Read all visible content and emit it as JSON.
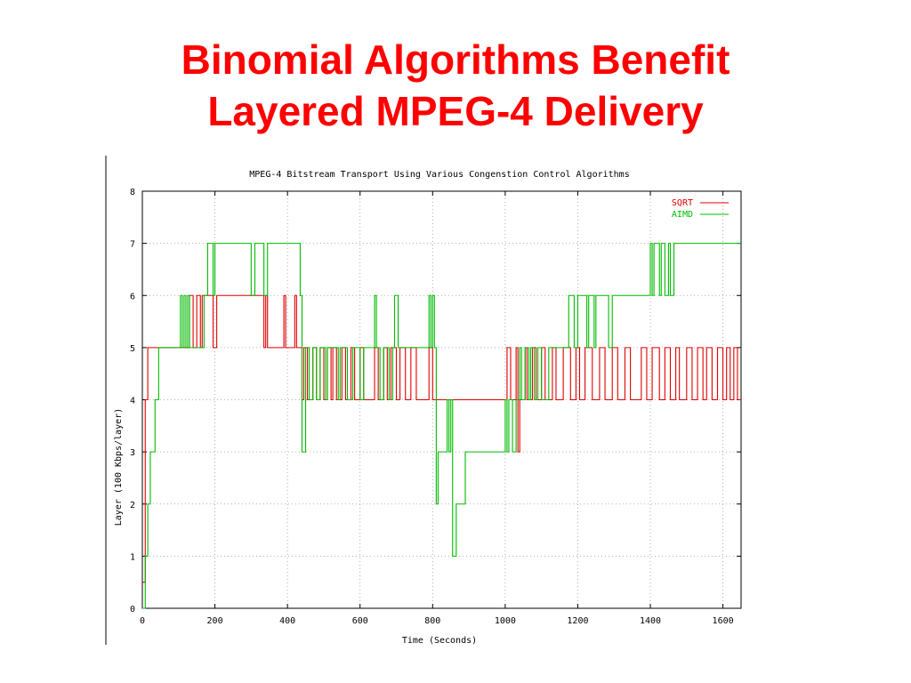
{
  "slide": {
    "title_line1": "Binomial Algorithms Benefit",
    "title_line2": "Layered MPEG-4 Delivery"
  },
  "chart_data": {
    "type": "line",
    "title": "MPEG-4 Bitstream Transport Using Various Congenstion Control Algorithms",
    "xlabel": "Time (Seconds)",
    "ylabel": "Layer (100 Kbps/layer)",
    "xlim": [
      0,
      1650
    ],
    "ylim": [
      0,
      8
    ],
    "xticks": [
      0,
      200,
      400,
      600,
      800,
      1000,
      1200,
      1400,
      1600
    ],
    "yticks": [
      0,
      1,
      2,
      3,
      4,
      5,
      6,
      7,
      8
    ],
    "grid": true,
    "legend": "top-right",
    "series": [
      {
        "name": "SQRT",
        "color": "#e00000",
        "step": [
          [
            0,
            0.5
          ],
          [
            8,
            4
          ],
          [
            15,
            5
          ],
          [
            130,
            6
          ],
          [
            140,
            5
          ],
          [
            150,
            6
          ],
          [
            160,
            5
          ],
          [
            165,
            6
          ],
          [
            190,
            6
          ],
          [
            195,
            5
          ],
          [
            205,
            6
          ],
          [
            310,
            6
          ],
          [
            335,
            5
          ],
          [
            340,
            6
          ],
          [
            345,
            5
          ],
          [
            390,
            6
          ],
          [
            395,
            5
          ],
          [
            420,
            6
          ],
          [
            425,
            5
          ],
          [
            440,
            4
          ],
          [
            445,
            5
          ],
          [
            455,
            4
          ],
          [
            470,
            5
          ],
          [
            480,
            4
          ],
          [
            490,
            5
          ],
          [
            500,
            4
          ],
          [
            510,
            5
          ],
          [
            520,
            4
          ],
          [
            525,
            5
          ],
          [
            535,
            4
          ],
          [
            550,
            5
          ],
          [
            560,
            4
          ],
          [
            575,
            5
          ],
          [
            585,
            4
          ],
          [
            600,
            5
          ],
          [
            610,
            4
          ],
          [
            640,
            5
          ],
          [
            650,
            4
          ],
          [
            665,
            5
          ],
          [
            675,
            4
          ],
          [
            685,
            5
          ],
          [
            700,
            4
          ],
          [
            710,
            5
          ],
          [
            725,
            4
          ],
          [
            740,
            5
          ],
          [
            755,
            4
          ],
          [
            790,
            5
          ],
          [
            800,
            4
          ],
          [
            855,
            4
          ],
          [
            875,
            4
          ],
          [
            1000,
            4
          ],
          [
            1005,
            5
          ],
          [
            1015,
            4
          ],
          [
            1030,
            5
          ],
          [
            1035,
            3
          ],
          [
            1040,
            4
          ],
          [
            1055,
            5
          ],
          [
            1060,
            4
          ],
          [
            1075,
            5
          ],
          [
            1085,
            4
          ],
          [
            1100,
            5
          ],
          [
            1110,
            4
          ],
          [
            1130,
            5
          ],
          [
            1140,
            4
          ],
          [
            1160,
            5
          ],
          [
            1180,
            4
          ],
          [
            1195,
            5
          ],
          [
            1205,
            4
          ],
          [
            1220,
            5
          ],
          [
            1240,
            4
          ],
          [
            1260,
            5
          ],
          [
            1275,
            4
          ],
          [
            1295,
            5
          ],
          [
            1310,
            4
          ],
          [
            1330,
            5
          ],
          [
            1345,
            4
          ],
          [
            1375,
            5
          ],
          [
            1390,
            4
          ],
          [
            1405,
            5
          ],
          [
            1425,
            4
          ],
          [
            1440,
            5
          ],
          [
            1455,
            4
          ],
          [
            1470,
            5
          ],
          [
            1480,
            4
          ],
          [
            1500,
            5
          ],
          [
            1515,
            4
          ],
          [
            1530,
            5
          ],
          [
            1545,
            4
          ],
          [
            1555,
            5
          ],
          [
            1570,
            4
          ],
          [
            1585,
            5
          ],
          [
            1600,
            4
          ],
          [
            1610,
            5
          ],
          [
            1620,
            4
          ],
          [
            1630,
            5
          ],
          [
            1640,
            4
          ],
          [
            1650,
            4
          ]
        ]
      },
      {
        "name": "AIMD",
        "color": "#00bb00",
        "step": [
          [
            0,
            0
          ],
          [
            8,
            1
          ],
          [
            15,
            2
          ],
          [
            22,
            3
          ],
          [
            35,
            4
          ],
          [
            45,
            5
          ],
          [
            105,
            6
          ],
          [
            110,
            5
          ],
          [
            115,
            6
          ],
          [
            120,
            5
          ],
          [
            125,
            6
          ],
          [
            130,
            5
          ],
          [
            170,
            6
          ],
          [
            180,
            7
          ],
          [
            195,
            6
          ],
          [
            200,
            7
          ],
          [
            300,
            6
          ],
          [
            310,
            7
          ],
          [
            335,
            6
          ],
          [
            345,
            7
          ],
          [
            435,
            6
          ],
          [
            440,
            3
          ],
          [
            450,
            5
          ],
          [
            460,
            4
          ],
          [
            470,
            5
          ],
          [
            480,
            4
          ],
          [
            490,
            5
          ],
          [
            505,
            4
          ],
          [
            510,
            5
          ],
          [
            540,
            4
          ],
          [
            545,
            5
          ],
          [
            565,
            4
          ],
          [
            580,
            5
          ],
          [
            600,
            4
          ],
          [
            610,
            5
          ],
          [
            640,
            6
          ],
          [
            645,
            5
          ],
          [
            655,
            4
          ],
          [
            665,
            5
          ],
          [
            680,
            4
          ],
          [
            690,
            5
          ],
          [
            695,
            6
          ],
          [
            705,
            5
          ],
          [
            790,
            6
          ],
          [
            795,
            5
          ],
          [
            800,
            6
          ],
          [
            805,
            5
          ],
          [
            810,
            2
          ],
          [
            815,
            3
          ],
          [
            840,
            4
          ],
          [
            845,
            3
          ],
          [
            850,
            4
          ],
          [
            855,
            1
          ],
          [
            865,
            2
          ],
          [
            890,
            3
          ],
          [
            1000,
            4
          ],
          [
            1005,
            3
          ],
          [
            1010,
            4
          ],
          [
            1020,
            3
          ],
          [
            1030,
            4
          ],
          [
            1040,
            5
          ],
          [
            1045,
            4
          ],
          [
            1055,
            5
          ],
          [
            1065,
            4
          ],
          [
            1070,
            5
          ],
          [
            1080,
            4
          ],
          [
            1090,
            5
          ],
          [
            1100,
            4
          ],
          [
            1120,
            5
          ],
          [
            1175,
            6
          ],
          [
            1190,
            5
          ],
          [
            1200,
            6
          ],
          [
            1225,
            5
          ],
          [
            1230,
            6
          ],
          [
            1245,
            5
          ],
          [
            1250,
            6
          ],
          [
            1285,
            5
          ],
          [
            1295,
            6
          ],
          [
            1400,
            7
          ],
          [
            1405,
            6
          ],
          [
            1410,
            7
          ],
          [
            1425,
            6
          ],
          [
            1430,
            7
          ],
          [
            1440,
            6
          ],
          [
            1450,
            7
          ],
          [
            1455,
            6
          ],
          [
            1465,
            7
          ],
          [
            1650,
            7
          ]
        ]
      }
    ]
  }
}
